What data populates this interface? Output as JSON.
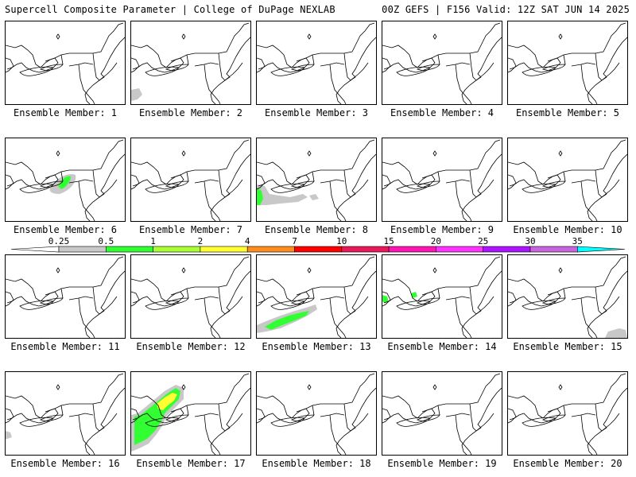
{
  "header": {
    "left": "Supercell Composite Parameter | College of DuPage NEXLAB",
    "right": "00Z GEFS | F156 Valid: 12Z SAT JUN 14 2025"
  },
  "panels": [
    {
      "label": "Ensemble Member: 1",
      "member": 1,
      "shading": []
    },
    {
      "label": "Ensemble Member: 2",
      "member": 2,
      "shading": [
        "gray-sw-small"
      ]
    },
    {
      "label": "Ensemble Member: 3",
      "member": 3,
      "shading": []
    },
    {
      "label": "Ensemble Member: 4",
      "member": 4,
      "shading": []
    },
    {
      "label": "Ensemble Member: 5",
      "member": 5,
      "shading": []
    },
    {
      "label": "Ensemble Member: 6",
      "member": 6,
      "shading": [
        "gray-ny",
        "green-ny"
      ]
    },
    {
      "label": "Ensemble Member: 7",
      "member": 7,
      "shading": []
    },
    {
      "label": "Ensemble Member: 8",
      "member": 8,
      "shading": [
        "gray-wide-sw",
        "green-west"
      ]
    },
    {
      "label": "Ensemble Member: 9",
      "member": 9,
      "shading": []
    },
    {
      "label": "Ensemble Member: 10",
      "member": 10,
      "shading": []
    },
    {
      "label": "Ensemble Member: 11",
      "member": 11,
      "shading": []
    },
    {
      "label": "Ensemble Member: 12",
      "member": 12,
      "shading": []
    },
    {
      "label": "Ensemble Member: 13",
      "member": 13,
      "shading": [
        "gray-sw-band",
        "green-sw-band"
      ]
    },
    {
      "label": "Ensemble Member: 14",
      "member": 14,
      "shading": [
        "green-west-small"
      ]
    },
    {
      "label": "Ensemble Member: 15",
      "member": 15,
      "shading": [
        "gray-se-small"
      ]
    },
    {
      "label": "Ensemble Member: 16",
      "member": 16,
      "shading": [
        "gray-w-small"
      ]
    },
    {
      "label": "Ensemble Member: 17",
      "member": 17,
      "shading": [
        "gray-big",
        "green-big",
        "yellow-big"
      ]
    },
    {
      "label": "Ensemble Member: 18",
      "member": 18,
      "shading": []
    },
    {
      "label": "Ensemble Member: 19",
      "member": 19,
      "shading": []
    },
    {
      "label": "Ensemble Member: 20",
      "member": 20,
      "shading": []
    }
  ],
  "colorbar": {
    "tick_labels": [
      "0.25",
      "0.5",
      "1",
      "2",
      "4",
      "7",
      "10",
      "15",
      "20",
      "25",
      "30",
      "35"
    ],
    "colors": [
      "#c8c8c8",
      "#32ff32",
      "#aaff32",
      "#ffff32",
      "#ff8c1e",
      "#ff0000",
      "#e8185a",
      "#ff14b4",
      "#ff32ff",
      "#aa14ff",
      "#c864dc",
      "#00ffff"
    ]
  }
}
